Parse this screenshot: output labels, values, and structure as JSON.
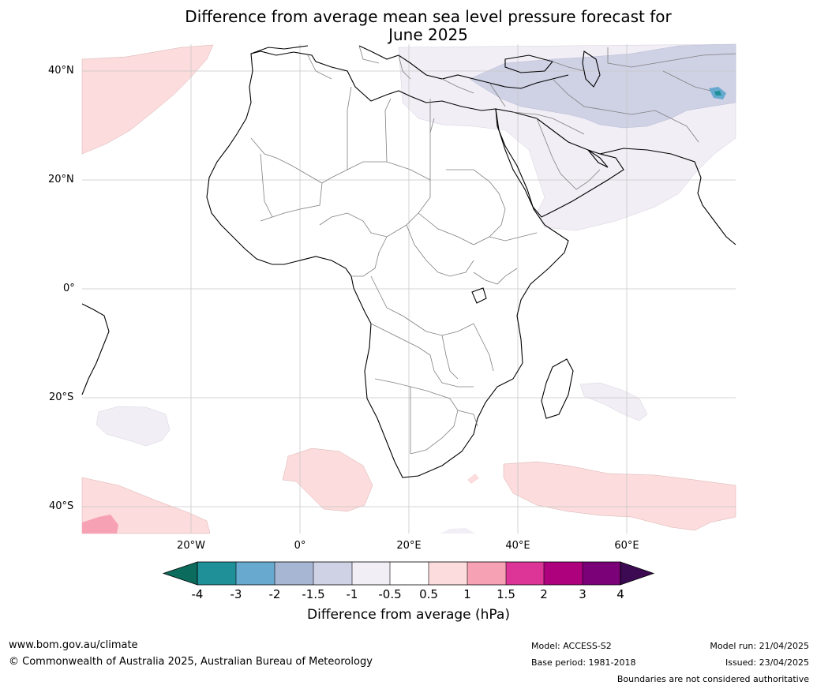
{
  "title": {
    "line1": "Difference from average mean sea level pressure forecast for",
    "line2": "June 2025"
  },
  "map": {
    "lat_labels": [
      "40°N",
      "20°N",
      "0°",
      "20°S",
      "40°S"
    ],
    "lon_labels": [
      "20°W",
      "0°",
      "20°E",
      "40°E",
      "60°E"
    ],
    "land_color": "#ffffff",
    "coast_color": "#000000",
    "border_color": "#808080",
    "grid_color": "#c8c8c8"
  },
  "colorbar": {
    "title": "Difference from average (hPa)",
    "ticks": [
      "-4",
      "-3",
      "-2",
      "-1.5",
      "-1",
      "-0.5",
      "0.5",
      "1",
      "1.5",
      "2",
      "3",
      "4"
    ],
    "under_color": "#0b6b5c",
    "over_color": "#3b0a52",
    "colors": [
      "#1f8f98",
      "#67a9cf",
      "#a7b7d3",
      "#cfd1e5",
      "#f1eef5",
      "#ffffff",
      "#fcdcdc",
      "#f7a1b5",
      "#dd3497",
      "#ae017e",
      "#7a0177"
    ]
  },
  "footer": {
    "website": "www.bom.gov.au/climate",
    "copyright": "© Commonwealth of Australia 2025, Australian Bureau of Meteorology",
    "model": "Model: ACCESS-S2",
    "base_period": "Base period: 1981-2018",
    "model_run": "Model run: 21/04/2025",
    "issued": "Issued: 23/04/2025",
    "boundaries": "Boundaries are not considered authoritative"
  }
}
